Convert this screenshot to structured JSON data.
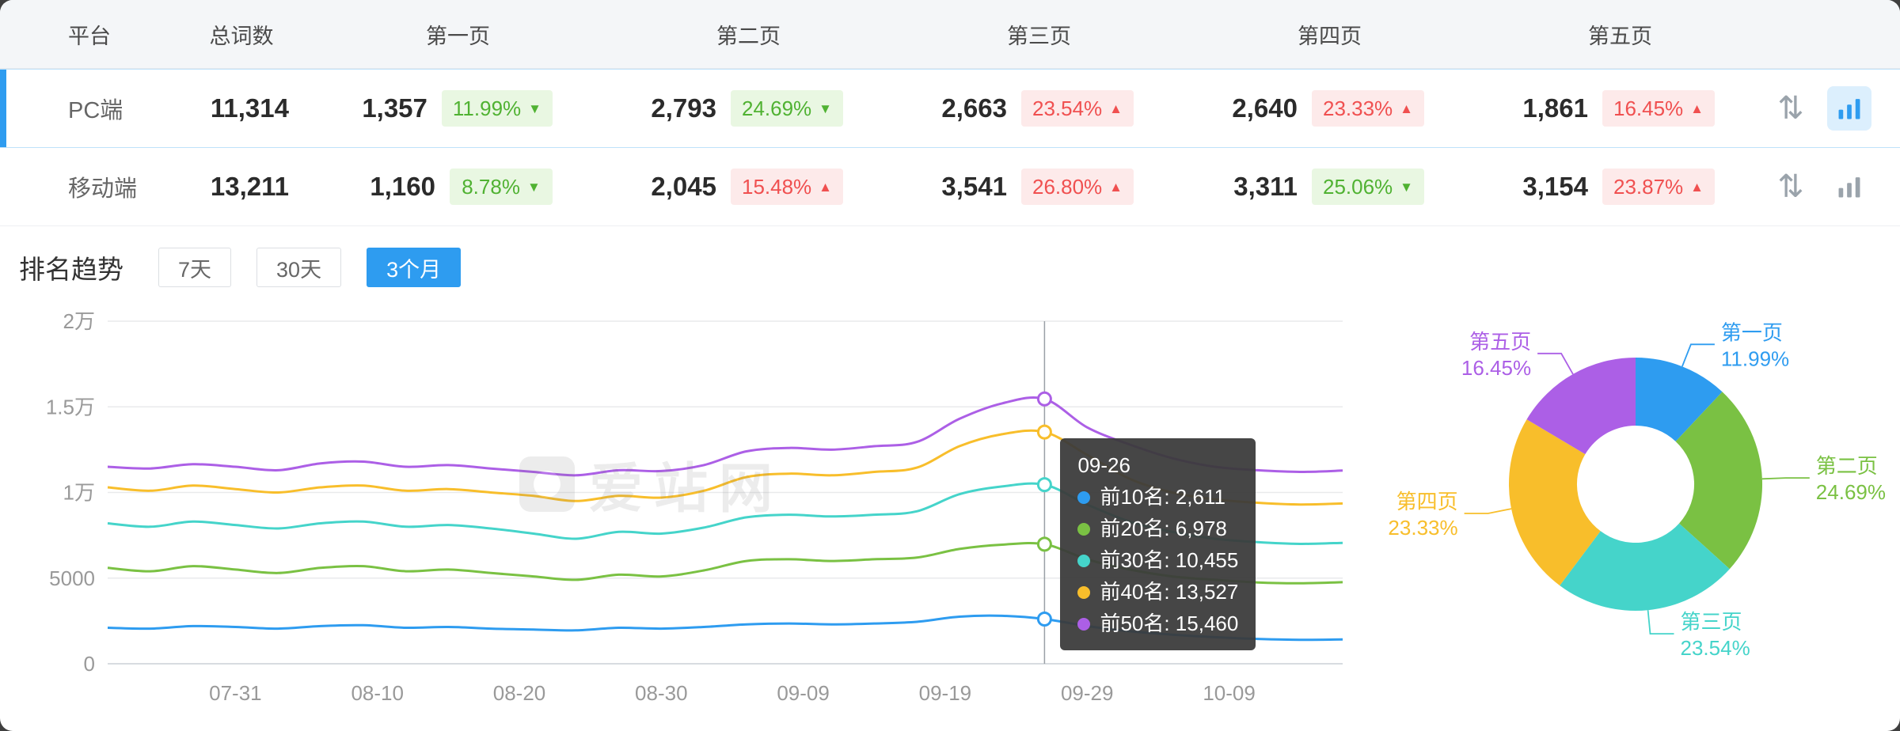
{
  "colors": {
    "accent": "#2e9cf0",
    "green_text": "#50b232",
    "green_bg": "#e9f7e2",
    "red_text": "#f05050",
    "red_bg": "#fdeaea"
  },
  "icons": {
    "sort_glyph": "⇅",
    "sort": "arrows-up-down-icon",
    "chart": "bar-chart-icon"
  },
  "watermark": "爱站网",
  "table": {
    "headers": [
      "平台",
      "总词数",
      "第一页",
      "第二页",
      "第三页",
      "第四页",
      "第五页"
    ],
    "rows": [
      {
        "platform": "PC端",
        "total": "11,314",
        "selected": true,
        "pages": [
          {
            "count": "1,357",
            "pct": "11.99%",
            "dir": "down",
            "tone": "green"
          },
          {
            "count": "2,793",
            "pct": "24.69%",
            "dir": "down",
            "tone": "green"
          },
          {
            "count": "2,663",
            "pct": "23.54%",
            "dir": "up",
            "tone": "red"
          },
          {
            "count": "2,640",
            "pct": "23.33%",
            "dir": "up",
            "tone": "red"
          },
          {
            "count": "1,861",
            "pct": "16.45%",
            "dir": "up",
            "tone": "red"
          }
        ]
      },
      {
        "platform": "移动端",
        "total": "13,211",
        "selected": false,
        "pages": [
          {
            "count": "1,160",
            "pct": "8.78%",
            "dir": "down",
            "tone": "green"
          },
          {
            "count": "2,045",
            "pct": "15.48%",
            "dir": "up",
            "tone": "red"
          },
          {
            "count": "3,541",
            "pct": "26.80%",
            "dir": "up",
            "tone": "red"
          },
          {
            "count": "3,311",
            "pct": "25.06%",
            "dir": "down",
            "tone": "green"
          },
          {
            "count": "3,154",
            "pct": "23.87%",
            "dir": "up",
            "tone": "red"
          }
        ]
      }
    ]
  },
  "trend": {
    "title": "排名趋势",
    "ranges": [
      "7天",
      "30天",
      "3个月"
    ],
    "active_range": "3个月"
  },
  "chart_data": [
    {
      "type": "line",
      "title": "排名趋势 (3个月)",
      "x": [
        "07-22",
        "07-25",
        "07-28",
        "07-31",
        "08-03",
        "08-06",
        "08-09",
        "08-12",
        "08-15",
        "08-18",
        "08-21",
        "08-24",
        "08-27",
        "08-30",
        "09-02",
        "09-05",
        "09-08",
        "09-11",
        "09-14",
        "09-17",
        "09-20",
        "09-23",
        "09-26",
        "09-29",
        "10-02",
        "10-05",
        "10-08",
        "10-11",
        "10-14",
        "10-17"
      ],
      "series": [
        {
          "name": "前10名",
          "color": "#2e9cf0",
          "values": [
            2100,
            2050,
            2200,
            2150,
            2050,
            2200,
            2250,
            2100,
            2150,
            2050,
            2000,
            1950,
            2100,
            2050,
            2150,
            2300,
            2350,
            2300,
            2350,
            2450,
            2750,
            2800,
            2611,
            2200,
            1900,
            1700,
            1550,
            1450,
            1400,
            1420
          ]
        },
        {
          "name": "前20名",
          "color": "#7ac143",
          "values": [
            5600,
            5400,
            5700,
            5500,
            5300,
            5600,
            5700,
            5400,
            5500,
            5300,
            5100,
            4900,
            5200,
            5100,
            5450,
            6000,
            6100,
            6000,
            6100,
            6200,
            6700,
            6950,
            6978,
            6100,
            5500,
            5100,
            4900,
            4750,
            4700,
            4760
          ]
        },
        {
          "name": "前30名",
          "color": "#45d4ca",
          "values": [
            8200,
            8000,
            8300,
            8100,
            7900,
            8200,
            8300,
            8000,
            8100,
            7900,
            7600,
            7300,
            7700,
            7600,
            7950,
            8550,
            8700,
            8600,
            8700,
            8900,
            9900,
            10350,
            10455,
            9300,
            8300,
            7700,
            7300,
            7100,
            7000,
            7060
          ]
        },
        {
          "name": "前40名",
          "color": "#f8be2b",
          "values": [
            10300,
            10100,
            10400,
            10200,
            10000,
            10300,
            10400,
            10100,
            10200,
            10000,
            9800,
            9500,
            9800,
            9700,
            10100,
            10900,
            11100,
            11000,
            11200,
            11450,
            12700,
            13400,
            13527,
            12200,
            10800,
            10000,
            9600,
            9400,
            9300,
            9360
          ]
        },
        {
          "name": "前50名",
          "color": "#ac5fe6",
          "values": [
            11500,
            11400,
            11650,
            11500,
            11300,
            11700,
            11800,
            11500,
            11600,
            11400,
            11200,
            11000,
            11300,
            11250,
            11600,
            12400,
            12600,
            12500,
            12700,
            12950,
            14300,
            15200,
            15460,
            13800,
            12800,
            12000,
            11500,
            11300,
            11200,
            11280
          ]
        }
      ],
      "xticks": [
        "07-31",
        "08-10",
        "08-20",
        "08-30",
        "09-09",
        "09-19",
        "09-29",
        "10-09"
      ],
      "ytick_labels": [
        "0",
        "5000",
        "1万",
        "1.5万",
        "2万"
      ],
      "ylim": [
        0,
        20000
      ],
      "grid": "horizontal",
      "legend": "none",
      "highlight_date": "09-26",
      "tooltip": {
        "title": "09-26",
        "rows": [
          {
            "name": "前10名",
            "value": "2,611"
          },
          {
            "name": "前20名",
            "value": "6,978"
          },
          {
            "name": "前30名",
            "value": "10,455"
          },
          {
            "name": "前40名",
            "value": "13,527"
          },
          {
            "name": "前50名",
            "value": "15,460"
          }
        ]
      }
    },
    {
      "type": "pie",
      "donut": true,
      "inner_radius_ratio": 0.4625,
      "items": [
        {
          "label": "第一页",
          "pct": "11.99%",
          "value": 11.99,
          "color": "#2e9cf0"
        },
        {
          "label": "第二页",
          "pct": "24.69%",
          "value": 24.69,
          "color": "#7ac143"
        },
        {
          "label": "第三页",
          "pct": "23.54%",
          "value": 23.54,
          "color": "#45d4ca"
        },
        {
          "label": "第四页",
          "pct": "23.33%",
          "value": 23.33,
          "color": "#f8be2b"
        },
        {
          "label": "第五页",
          "pct": "16.45%",
          "value": 16.45,
          "color": "#ac5fe6"
        }
      ]
    }
  ]
}
